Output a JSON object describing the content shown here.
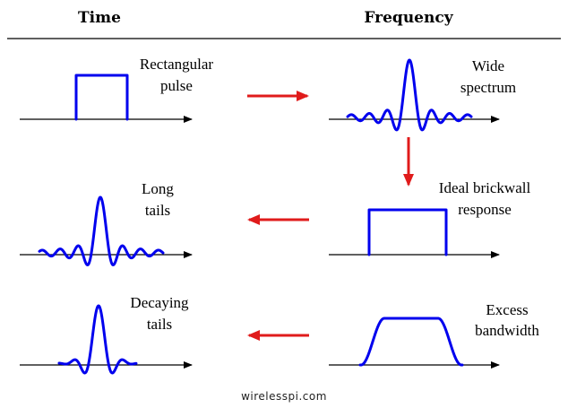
{
  "headers": {
    "time": "Time",
    "frequency": "Frequency"
  },
  "rows": [
    {
      "time_label": [
        "Rectangular",
        "pulse"
      ],
      "freq_label": [
        "Wide",
        "spectrum"
      ]
    },
    {
      "time_label": [
        "Long",
        "tails"
      ],
      "freq_label": [
        "Ideal brickwall",
        "response"
      ]
    },
    {
      "time_label": [
        "Decaying",
        "tails"
      ],
      "freq_label": [
        "Excess",
        "bandwidth"
      ]
    }
  ],
  "watermark": "wirelesspi.com",
  "colors": {
    "signal": "#0000ee",
    "arrow": "#e01b1b",
    "axis": "#000000"
  }
}
